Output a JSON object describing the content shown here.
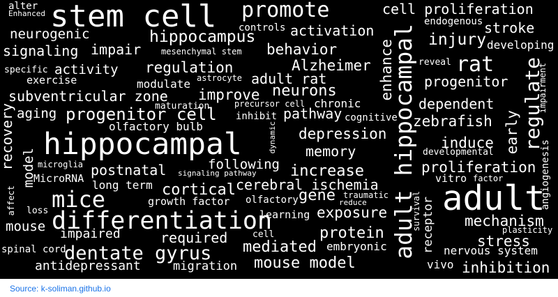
{
  "cloud": {
    "background": "#000000",
    "text_color": "#ffffff",
    "words": [
      "stem cell",
      "promote",
      "cell proliferation",
      "alter",
      "Enhanced",
      "endogenous",
      "stroke",
      "neurogenic",
      "hippocampus",
      "controls",
      "activation",
      "injury",
      "developing",
      "signaling",
      "impair",
      "mesenchymal stem",
      "behavior",
      "rat",
      "reveal",
      "specific",
      "activity",
      "regulation",
      "Alzheimer",
      "exercise",
      "modulate",
      "astrocyte",
      "adult rat",
      "progenitor",
      "impairment",
      "subventricular zone",
      "improve",
      "neurons",
      "maturation",
      "precursor cell",
      "chronic",
      "dependent",
      "aging",
      "progenitor cell",
      "inhibit",
      "pathway",
      "cognitive",
      "zebrafish",
      "olfactory bulb",
      "hippocampal",
      "depression",
      "induce",
      "developmental",
      "recovery",
      "model",
      "dynamic",
      "memory",
      "microglia",
      "following",
      "proliferation",
      "postnatal",
      "signaling pathway",
      "increase",
      "angiogenesis",
      "MicroRNA",
      "long term",
      "cortical",
      "cerebral ischemia",
      "vitro",
      "factor",
      "affect",
      "mice",
      "traumatic",
      "growth factor",
      "olfactory",
      "gene",
      "reduce",
      "loss",
      "exposure",
      "survival",
      "mechanism",
      "mouse",
      "differentiation",
      "learning",
      "receptor",
      "plasticity",
      "impaired",
      "required",
      "cell",
      "protein",
      "stress",
      "spinal cord",
      "dentate gyrus",
      "mediated",
      "embryonic",
      "nervous system",
      "antidepressant",
      "migration",
      "mouse model",
      "vivo",
      "inhibition",
      "adult hippocampal",
      "enhance",
      "adult",
      "regulate",
      "early"
    ]
  },
  "footer": {
    "source_label": "Source: k-soliman.github.io"
  }
}
